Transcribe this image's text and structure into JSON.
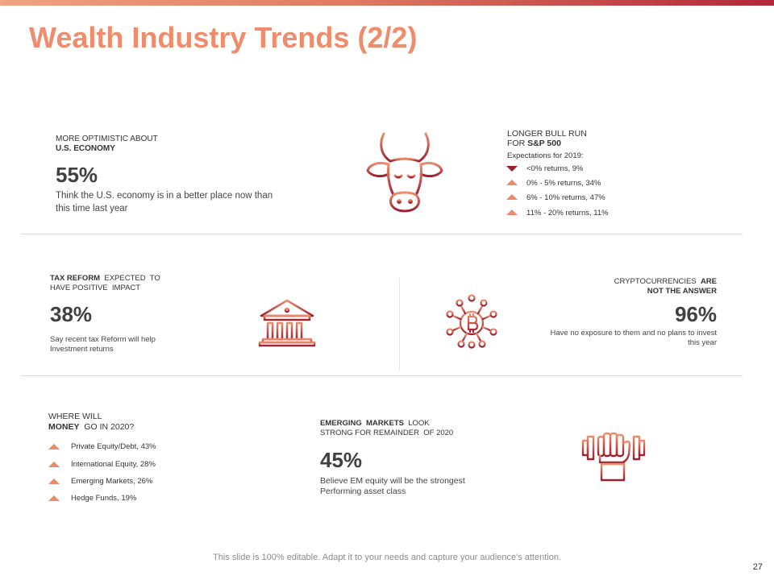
{
  "title": "Wealth Industry Trends (2/2)",
  "colors": {
    "accent": "#ee8c6c",
    "dark_red": "#9c1f2e",
    "triangle_up": "#e98b6b"
  },
  "economy": {
    "heading_line1": "MORE OPTIMISTIC ABOUT",
    "heading_line2": "U.S. ECONOMY",
    "percent": "55%",
    "description": "Think the U.S. economy is in a better place now than this time last year",
    "icon": "bull-icon"
  },
  "bull_run": {
    "heading_line1": "LONGER BULL RUN",
    "heading_line2_pre": "FOR ",
    "heading_line2_bold": "S&P 500",
    "subheading": "Expectations for 2019:",
    "items": [
      {
        "label": "<0%  returns, 9%",
        "direction": "down"
      },
      {
        "label": "0% - 5% returns, 34%",
        "direction": "up"
      },
      {
        "label": "6% - 10% returns, 47%",
        "direction": "up"
      },
      {
        "label": "11% - 20% returns, 11%",
        "direction": "up"
      }
    ]
  },
  "tax": {
    "heading_bold": "TAX REFORM",
    "heading_rest1": "  EXPECTED  TO",
    "heading_line2": "HAVE POSITIVE  IMPACT",
    "percent": "38%",
    "description": "Say recent tax Reform will help Investment returns",
    "icon": "bank-icon"
  },
  "crypto": {
    "heading_pre": "CRYPTOCURRENCIES  ",
    "heading_bold1": "ARE",
    "heading_line2_bold": "NOT THE ANSWER",
    "percent": "96%",
    "description": "Have no exposure to them and no plans to invest this year",
    "icon": "bitcoin-network-icon"
  },
  "money": {
    "heading_line1": "WHERE WILL",
    "heading_line2_bold": "MONEY",
    "heading_line2_rest": "  GO IN 2020?",
    "items": [
      {
        "label": "Private Equity/Debt,  43%",
        "direction": "up"
      },
      {
        "label": "International Equity,  28%",
        "direction": "up"
      },
      {
        "label": "Emerging  Markets, 26%",
        "direction": "up"
      },
      {
        "label": "Hedge Funds, 19%",
        "direction": "up"
      }
    ]
  },
  "emerging": {
    "heading_bold": "EMERGING  MARKETS",
    "heading_rest1": "  LOOK",
    "heading_line2": "STRONG FOR REMAINDER  OF 2020",
    "percent": "45%",
    "description": "Believe EM equity will be the strongest Performing asset class",
    "icon": "dumbbell-hand-icon"
  },
  "footer": "This slide is 100% editable. Adapt it to your needs and capture your audience's attention.",
  "page_number": "27"
}
